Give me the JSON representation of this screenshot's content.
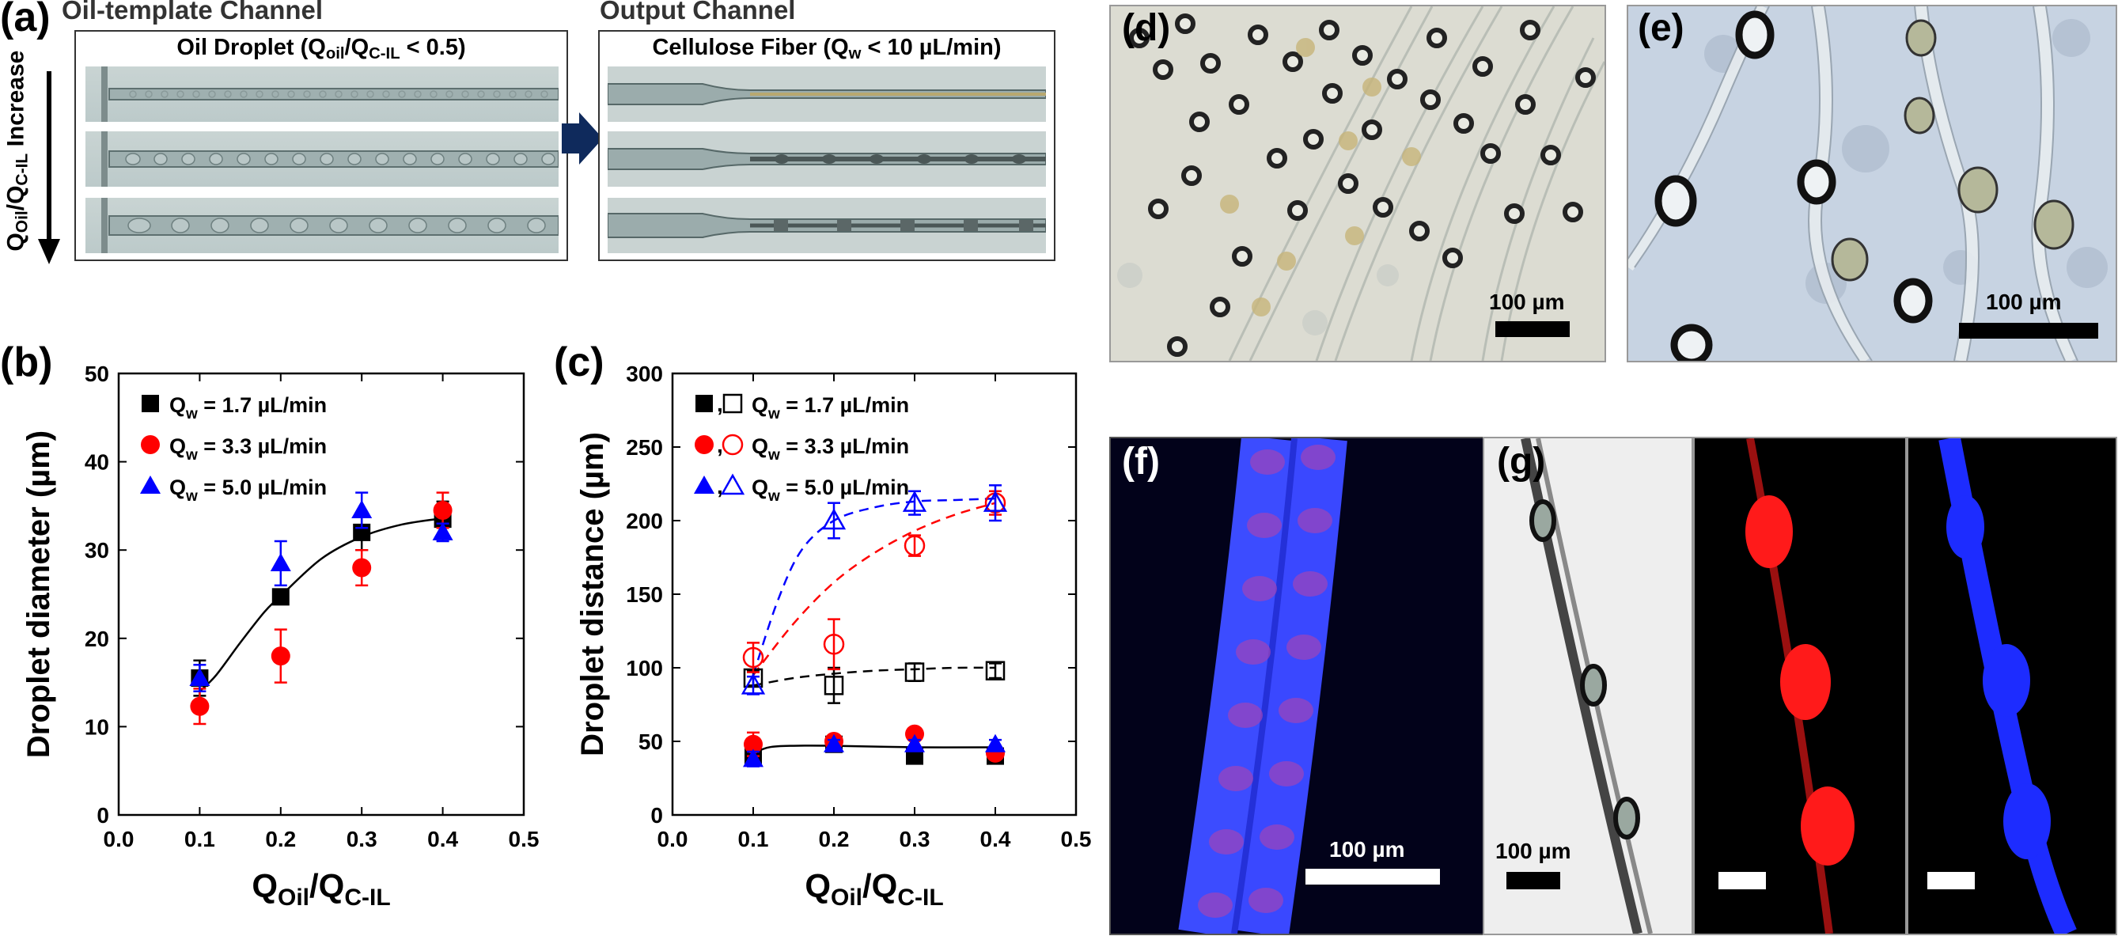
{
  "panels": {
    "a": {
      "label": "(a)",
      "oil_channel_title": "Oil-template Channel",
      "oil_box_title_main": "Oil Droplet (Q",
      "oil_box_title_sub1": "oil",
      "oil_box_title_mid": "/Q",
      "oil_box_title_sub2": "C-IL",
      "oil_box_title_end": " < 0.5)",
      "output_channel_title": "Output Channel",
      "output_box_title_main": "Cellulose Fiber (Q",
      "output_box_title_sub": "w",
      "output_box_title_end": " < 10 µL/min)",
      "arrow_label_main": "Q",
      "arrow_label_sub1": "Oil",
      "arrow_label_mid": "/Q",
      "arrow_label_sub2": "C-IL",
      "arrow_label_end": " Increase"
    },
    "b": {
      "label": "(b)"
    },
    "c": {
      "label": "(c)"
    },
    "d": {
      "label": "(d)",
      "scale_label": "100 µm"
    },
    "e": {
      "label": "(e)",
      "scale_label": "100 µm"
    },
    "f": {
      "label": "(f)",
      "scale_label": "100 µm"
    },
    "g": {
      "label": "(g)",
      "scale_label": "100 µm"
    }
  },
  "chart_data": [
    {
      "panel": "b",
      "type": "scatter",
      "xlabel_main": "Q",
      "xlabel_sub1": "Oil",
      "xlabel_mid": "/Q",
      "xlabel_sub2": "C-IL",
      "ylabel": "Droplet diameter (µm)",
      "xlim": [
        0.0,
        0.5
      ],
      "ylim": [
        0,
        50
      ],
      "xticks": [
        "0.0",
        "0.1",
        "0.2",
        "0.3",
        "0.4",
        "0.5"
      ],
      "yticks": [
        "0",
        "10",
        "20",
        "30",
        "40",
        "50"
      ],
      "legend_position": "top-left",
      "series": [
        {
          "name": "Q",
          "name_sub": "w",
          "name_end": " = 1.7 µL/min",
          "color": "#000000",
          "marker": "square",
          "x": [
            0.1,
            0.2,
            0.3,
            0.4
          ],
          "y": [
            15.5,
            24.7,
            32,
            33.5
          ],
          "err": [
            2,
            0,
            2,
            2
          ]
        },
        {
          "name": "Q",
          "name_sub": "w",
          "name_end": " = 3.3 µL/min",
          "color": "#ff0000",
          "marker": "circle",
          "x": [
            0.1,
            0.2,
            0.3,
            0.4
          ],
          "y": [
            12.3,
            18,
            28,
            34.5
          ],
          "err": [
            2,
            3,
            2,
            2
          ]
        },
        {
          "name": "Q",
          "name_sub": "w",
          "name_end": " = 5.0 µL/min",
          "color": "#0000ff",
          "marker": "triangle",
          "x": [
            0.1,
            0.2,
            0.3,
            0.4
          ],
          "y": [
            15.5,
            28.5,
            34.5,
            32
          ],
          "err": [
            1.5,
            2.5,
            2,
            1
          ]
        }
      ],
      "fit": {
        "color": "#000000",
        "x": [
          0.1,
          0.12,
          0.15,
          0.18,
          0.2,
          0.25,
          0.3,
          0.35,
          0.4
        ],
        "y": [
          14,
          15.8,
          19.5,
          23.0,
          24.8,
          29,
          31.5,
          32.9,
          33.6
        ]
      }
    },
    {
      "panel": "c",
      "type": "scatter",
      "xlabel_main": "Q",
      "xlabel_sub1": "Oil",
      "xlabel_mid": "/Q",
      "xlabel_sub2": "C-IL",
      "ylabel": "Droplet distance (µm)",
      "xlim": [
        0.0,
        0.5
      ],
      "ylim": [
        0,
        300
      ],
      "xticks": [
        "0.0",
        "0.1",
        "0.2",
        "0.3",
        "0.4",
        "0.5"
      ],
      "yticks": [
        "0",
        "50",
        "100",
        "150",
        "200",
        "250",
        "300"
      ],
      "legend_position": "top-left",
      "legend_sep": ",",
      "series": [
        {
          "name": "Q",
          "name_sub": "w",
          "name_end": " = 1.7 µL/min",
          "color": "#000000",
          "marker": "square",
          "filled": {
            "x": [
              0.1,
              0.2,
              0.3,
              0.4
            ],
            "y": [
              40,
              48,
              40,
              40
            ],
            "err": [
              3,
              3,
              3,
              3
            ]
          },
          "open": {
            "x": [
              0.1,
              0.2,
              0.3,
              0.4
            ],
            "y": [
              93,
              88,
              97,
              98
            ],
            "err": [
              5,
              12,
              6,
              5
            ]
          }
        },
        {
          "name": "Q",
          "name_sub": "w",
          "name_end": " = 3.3 µL/min",
          "color": "#ff0000",
          "marker": "circle",
          "filled": {
            "x": [
              0.1,
              0.2,
              0.3,
              0.4
            ],
            "y": [
              48,
              50,
              55,
              42
            ],
            "err": [
              8,
              4,
              3,
              3
            ]
          },
          "open": {
            "x": [
              0.1,
              0.2,
              0.3,
              0.4
            ],
            "y": [
              107,
              116,
              183,
              212
            ],
            "err": [
              10,
              17,
              7,
              8
            ]
          }
        },
        {
          "name": "Q",
          "name_sub": "w",
          "name_end": " = 5.0 µL/min",
          "color": "#0000ff",
          "marker": "triangle",
          "filled": {
            "x": [
              0.1,
              0.2,
              0.3,
              0.4
            ],
            "y": [
              38,
              48,
              48,
              48
            ],
            "err": [
              5,
              3,
              3,
              3
            ]
          },
          "open": {
            "x": [
              0.1,
              0.2,
              0.3,
              0.4
            ],
            "y": [
              88,
              200,
              212,
              212
            ],
            "err": [
              6,
              12,
              8,
              12
            ]
          }
        }
      ],
      "fits": [
        {
          "color": "#000000",
          "style": "solid",
          "x": [
            0.1,
            0.12,
            0.15,
            0.2,
            0.3,
            0.4
          ],
          "y": [
            42,
            46,
            47,
            47,
            46,
            46
          ]
        },
        {
          "color": "#000000",
          "style": "dashed",
          "x": [
            0.1,
            0.15,
            0.2,
            0.25,
            0.3,
            0.35,
            0.4
          ],
          "y": [
            88,
            93,
            96,
            98,
            99,
            100,
            100
          ]
        },
        {
          "color": "#ff0000",
          "style": "dashed",
          "x": [
            0.1,
            0.15,
            0.2,
            0.25,
            0.3,
            0.35,
            0.4
          ],
          "y": [
            95,
            130,
            158,
            178,
            193,
            204,
            212
          ]
        },
        {
          "color": "#0000ff",
          "style": "dashed",
          "x": [
            0.1,
            0.13,
            0.16,
            0.2,
            0.25,
            0.3,
            0.35,
            0.4
          ],
          "y": [
            95,
            145,
            180,
            200,
            209,
            213,
            214,
            215
          ]
        }
      ]
    }
  ]
}
